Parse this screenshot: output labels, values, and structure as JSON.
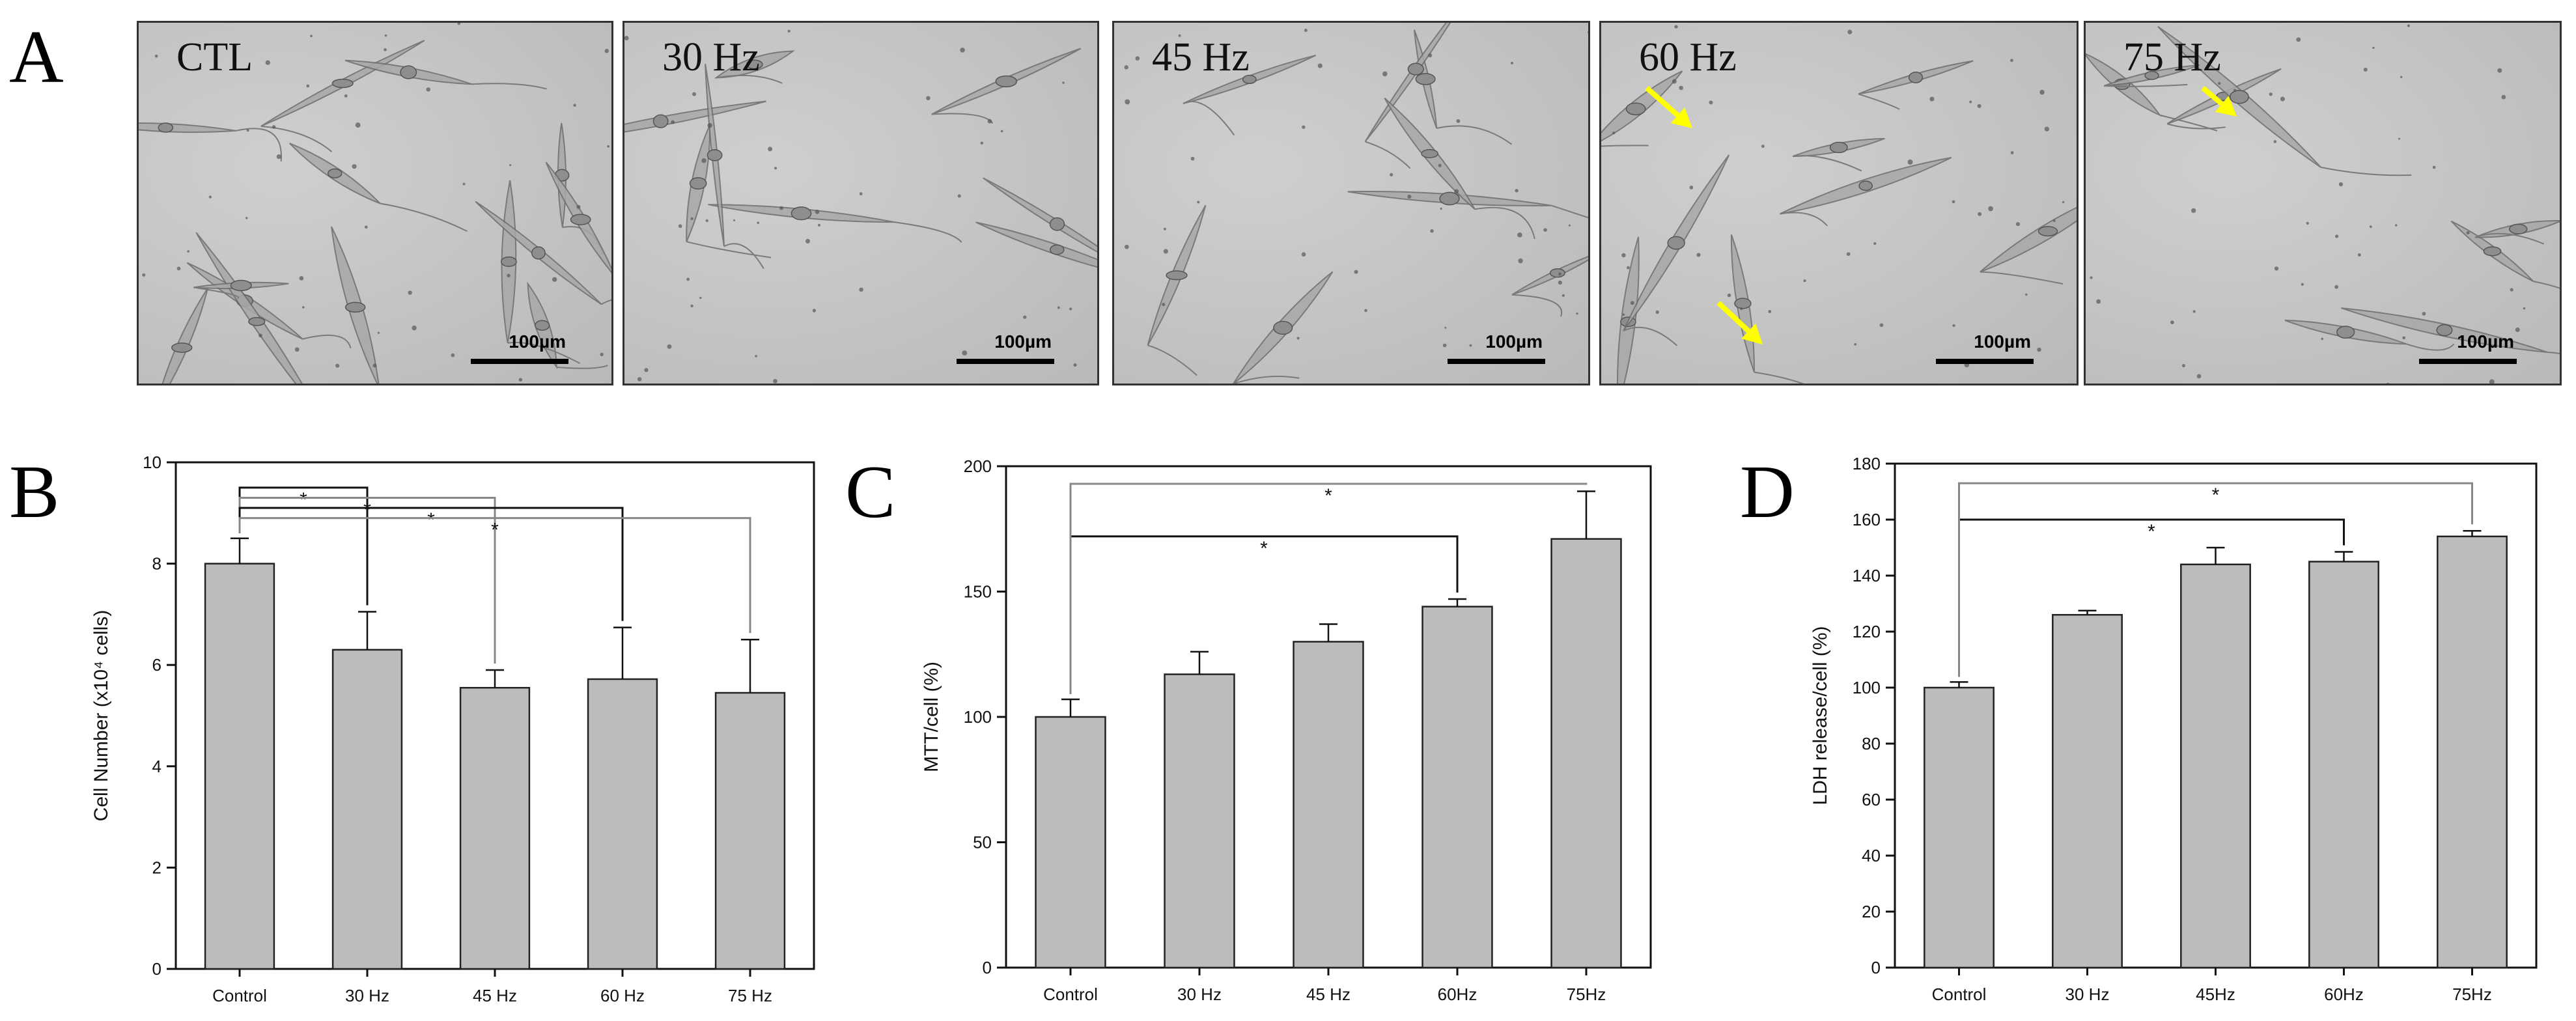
{
  "panel_labels": {
    "a": "A",
    "b": "B",
    "c": "C",
    "d": "D"
  },
  "micrographs": [
    {
      "label": "CTL",
      "scale": "100µm",
      "arrows": 0
    },
    {
      "label": "30 Hz",
      "scale": "100µm",
      "arrows": 0
    },
    {
      "label": "45 Hz",
      "scale": "100µm",
      "arrows": 0
    },
    {
      "label": "60 Hz",
      "scale": "100µm",
      "arrows": 2
    },
    {
      "label": "75 Hz",
      "scale": "100µm",
      "arrows": 1
    }
  ],
  "colors": {
    "bar": "#bcbcbc",
    "bar_stroke": "#222222",
    "arrow": "#ffff00",
    "bracket_dark": "#111111",
    "bracket_light": "#888888"
  },
  "chart_data": [
    {
      "type": "bar",
      "panel": "B",
      "categories": [
        "Control",
        "30 Hz",
        "45 Hz",
        "60 Hz",
        "75 Hz"
      ],
      "values": [
        8.0,
        6.3,
        5.55,
        5.72,
        5.45
      ],
      "errors": [
        0.5,
        0.75,
        0.35,
        1.02,
        1.05
      ],
      "ylabel": "Cell Number (x10⁴ cells)",
      "ylim": [
        0,
        10
      ],
      "yticks": [
        0,
        2,
        4,
        6,
        8,
        10
      ],
      "significance": [
        {
          "from": 0,
          "to": 1,
          "label": "*",
          "level": 9.5
        },
        {
          "from": 0,
          "to": 2,
          "label": "*",
          "level": 9.3
        },
        {
          "from": 0,
          "to": 3,
          "label": "*",
          "level": 9.1
        },
        {
          "from": 0,
          "to": 4,
          "label": "*",
          "level": 8.9
        }
      ]
    },
    {
      "type": "bar",
      "panel": "C",
      "categories": [
        "Control",
        "30 Hz",
        "45 Hz",
        "60Hz",
        "75Hz"
      ],
      "values": [
        100,
        117,
        130,
        144,
        171
      ],
      "errors": [
        7,
        9,
        7,
        3,
        19
      ],
      "ylabel": "MTT/cell (%)",
      "ylim": [
        0,
        200
      ],
      "yticks": [
        0,
        50,
        100,
        150,
        200
      ],
      "significance": [
        {
          "from": 0,
          "to": 3,
          "label": "*",
          "level": 172
        },
        {
          "from": 0,
          "to": 4,
          "label": "*",
          "level": 193
        }
      ]
    },
    {
      "type": "bar",
      "panel": "D",
      "categories": [
        "Control",
        "30 Hz",
        "45Hz",
        "60Hz",
        "75Hz"
      ],
      "values": [
        100,
        126,
        144,
        145,
        154
      ],
      "errors": [
        2,
        1.5,
        6,
        3.5,
        2
      ],
      "ylabel": "LDH release/cell (%)",
      "ylim": [
        0,
        180
      ],
      "yticks": [
        0,
        20,
        40,
        60,
        80,
        100,
        120,
        140,
        160,
        180
      ],
      "significance": [
        {
          "from": 0,
          "to": 3,
          "label": "*",
          "level": 160
        },
        {
          "from": 0,
          "to": 4,
          "label": "*",
          "level": 173
        }
      ]
    }
  ]
}
